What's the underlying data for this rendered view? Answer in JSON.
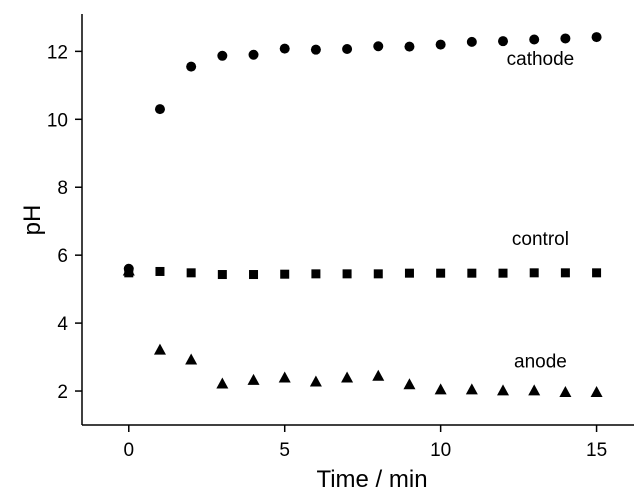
{
  "chart_data": {
    "type": "scatter",
    "xlabel": "Time / min",
    "ylabel": "pH",
    "xlim": [
      -1.5,
      16.2
    ],
    "ylim": [
      1.0,
      13.1
    ],
    "xticks": [
      0,
      5,
      10,
      15
    ],
    "yticks": [
      2,
      4,
      6,
      8,
      10,
      12
    ],
    "grid": false,
    "legend": "none",
    "series": [
      {
        "name": "cathode",
        "marker": "circle",
        "x": [
          0,
          1,
          2,
          3,
          4,
          5,
          6,
          7,
          8,
          9,
          10,
          11,
          12,
          13,
          14,
          15
        ],
        "y": [
          5.6,
          10.3,
          11.55,
          11.87,
          11.9,
          12.08,
          12.05,
          12.07,
          12.15,
          12.14,
          12.2,
          12.28,
          12.3,
          12.35,
          12.38,
          12.42
        ]
      },
      {
        "name": "control",
        "marker": "square",
        "x": [
          0,
          1,
          2,
          3,
          4,
          5,
          6,
          7,
          8,
          9,
          10,
          11,
          12,
          13,
          14,
          15
        ],
        "y": [
          5.48,
          5.52,
          5.48,
          5.43,
          5.43,
          5.44,
          5.45,
          5.45,
          5.45,
          5.47,
          5.47,
          5.47,
          5.47,
          5.48,
          5.48,
          5.48
        ]
      },
      {
        "name": "anode",
        "marker": "triangle",
        "x": [
          0,
          1,
          2,
          3,
          4,
          5,
          6,
          7,
          8,
          9,
          10,
          11,
          12,
          13,
          14,
          15
        ],
        "y": [
          5.55,
          3.22,
          2.93,
          2.22,
          2.33,
          2.4,
          2.28,
          2.4,
          2.45,
          2.2,
          2.05,
          2.05,
          2.02,
          2.02,
          1.97,
          1.97
        ]
      }
    ],
    "annotations": [
      {
        "text": "cathode",
        "x": 13.2,
        "y": 11.6
      },
      {
        "text": "control",
        "x": 13.2,
        "y": 6.3
      },
      {
        "text": "anode",
        "x": 13.2,
        "y": 2.7
      }
    ]
  }
}
